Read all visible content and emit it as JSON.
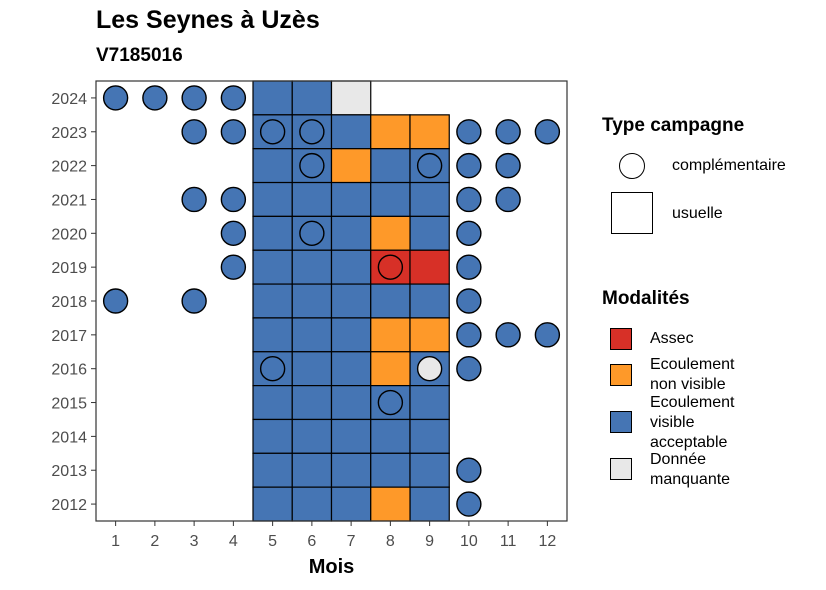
{
  "title": "Les Seynes à Uzès",
  "subtitle": "V7185016",
  "chart_data": {
    "type": "heatmap",
    "xlabel": "Mois",
    "ylabel": "",
    "x_ticks": [
      1,
      2,
      3,
      4,
      5,
      6,
      7,
      8,
      9,
      10,
      11,
      12
    ],
    "y_ticks": [
      2012,
      2013,
      2014,
      2015,
      2016,
      2017,
      2018,
      2019,
      2020,
      2021,
      2022,
      2023,
      2024
    ],
    "grid": false,
    "legend_position": "right",
    "colors": {
      "Assec": "#d73027",
      "Ecoulement non visible": "#fe9929",
      "Ecoulement visible acceptable": "#4575b4",
      "Donnée manquante": "#e8e8e8"
    },
    "usuelle": [
      {
        "year": 2024,
        "months": [
          5,
          6
        ],
        "modalite": "Ecoulement visible acceptable"
      },
      {
        "year": 2024,
        "months": [
          7
        ],
        "modalite": "Donnée manquante"
      },
      {
        "year": 2023,
        "months": [
          5,
          6,
          7
        ],
        "modalite": "Ecoulement visible acceptable"
      },
      {
        "year": 2023,
        "months": [
          8,
          9
        ],
        "modalite": "Ecoulement non visible"
      },
      {
        "year": 2022,
        "months": [
          5,
          6,
          8,
          9
        ],
        "modalite": "Ecoulement visible acceptable"
      },
      {
        "year": 2022,
        "months": [
          7
        ],
        "modalite": "Ecoulement non visible"
      },
      {
        "year": 2021,
        "months": [
          5,
          6,
          7,
          8,
          9
        ],
        "modalite": "Ecoulement visible acceptable"
      },
      {
        "year": 2020,
        "months": [
          5,
          6,
          7,
          9
        ],
        "modalite": "Ecoulement visible acceptable"
      },
      {
        "year": 2020,
        "months": [
          8
        ],
        "modalite": "Ecoulement non visible"
      },
      {
        "year": 2019,
        "months": [
          5,
          6,
          7
        ],
        "modalite": "Ecoulement visible acceptable"
      },
      {
        "year": 2019,
        "months": [
          8,
          9
        ],
        "modalite": "Assec"
      },
      {
        "year": 2018,
        "months": [
          5,
          6,
          7,
          8,
          9
        ],
        "modalite": "Ecoulement visible acceptable"
      },
      {
        "year": 2017,
        "months": [
          5,
          6,
          7
        ],
        "modalite": "Ecoulement visible acceptable"
      },
      {
        "year": 2017,
        "months": [
          8,
          9
        ],
        "modalite": "Ecoulement non visible"
      },
      {
        "year": 2016,
        "months": [
          5,
          6,
          7,
          9
        ],
        "modalite": "Ecoulement visible acceptable"
      },
      {
        "year": 2016,
        "months": [
          8
        ],
        "modalite": "Ecoulement non visible"
      },
      {
        "year": 2015,
        "months": [
          5,
          6,
          7,
          8,
          9
        ],
        "modalite": "Ecoulement visible acceptable"
      },
      {
        "year": 2014,
        "months": [
          5,
          6,
          7,
          8,
          9
        ],
        "modalite": "Ecoulement visible acceptable"
      },
      {
        "year": 2013,
        "months": [
          5,
          6,
          7,
          8,
          9
        ],
        "modalite": "Ecoulement visible acceptable"
      },
      {
        "year": 2012,
        "months": [
          5,
          6,
          7,
          9
        ],
        "modalite": "Ecoulement visible acceptable"
      },
      {
        "year": 2012,
        "months": [
          8
        ],
        "modalite": "Ecoulement non visible"
      }
    ],
    "complementaire": [
      {
        "year": 2024,
        "months": [
          1,
          2,
          3,
          4
        ],
        "modalite": "Ecoulement visible acceptable"
      },
      {
        "year": 2023,
        "months": [
          3,
          4,
          10,
          11,
          12
        ],
        "modalite": "Ecoulement visible acceptable"
      },
      {
        "year": 2023,
        "months": [
          5,
          6
        ],
        "modalite": "Ecoulement visible acceptable",
        "outline_only": true
      },
      {
        "year": 2022,
        "months": [
          10,
          11
        ],
        "modalite": "Ecoulement visible acceptable"
      },
      {
        "year": 2022,
        "months": [
          6
        ],
        "modalite": "Ecoulement visible acceptable",
        "outline_only": true
      },
      {
        "year": 2022,
        "months": [
          9
        ],
        "modalite": "Ecoulement visible acceptable",
        "outline_only": true
      },
      {
        "year": 2021,
        "months": [
          3,
          4,
          10,
          11
        ],
        "modalite": "Ecoulement visible acceptable"
      },
      {
        "year": 2020,
        "months": [
          4,
          10
        ],
        "modalite": "Ecoulement visible acceptable"
      },
      {
        "year": 2020,
        "months": [
          6
        ],
        "modalite": "Ecoulement visible acceptable",
        "outline_only": true
      },
      {
        "year": 2019,
        "months": [
          4,
          10
        ],
        "modalite": "Ecoulement visible acceptable"
      },
      {
        "year": 2019,
        "months": [
          8
        ],
        "modalite": "Assec",
        "outline_only": true
      },
      {
        "year": 2018,
        "months": [
          1,
          3,
          10
        ],
        "modalite": "Ecoulement visible acceptable"
      },
      {
        "year": 2017,
        "months": [
          10,
          11,
          12
        ],
        "modalite": "Ecoulement visible acceptable"
      },
      {
        "year": 2016,
        "months": [
          5,
          10
        ],
        "modalite": "Ecoulement visible acceptable"
      },
      {
        "year": 2016,
        "months": [
          9
        ],
        "modalite": "Donnée manquante"
      },
      {
        "year": 2015,
        "months": [
          8
        ],
        "modalite": "Ecoulement visible acceptable",
        "outline_only": true
      },
      {
        "year": 2013,
        "months": [
          10
        ],
        "modalite": "Ecoulement visible acceptable"
      },
      {
        "year": 2012,
        "months": [
          10
        ],
        "modalite": "Ecoulement visible acceptable"
      }
    ]
  },
  "legend_type": {
    "title": "Type campagne",
    "items": [
      {
        "label": "complémentaire",
        "shape": "circle"
      },
      {
        "label": "usuelle",
        "shape": "square"
      }
    ]
  },
  "legend_modalites": {
    "title": "Modalités",
    "items": [
      {
        "label_lines": [
          "Assec"
        ],
        "color": "#d73027"
      },
      {
        "label_lines": [
          "Ecoulement",
          "non visible"
        ],
        "color": "#fe9929"
      },
      {
        "label_lines": [
          "Ecoulement",
          "visible",
          "acceptable"
        ],
        "color": "#4575b4"
      },
      {
        "label_lines": [
          "Donnée",
          "manquante"
        ],
        "color": "#e8e8e8"
      }
    ]
  }
}
